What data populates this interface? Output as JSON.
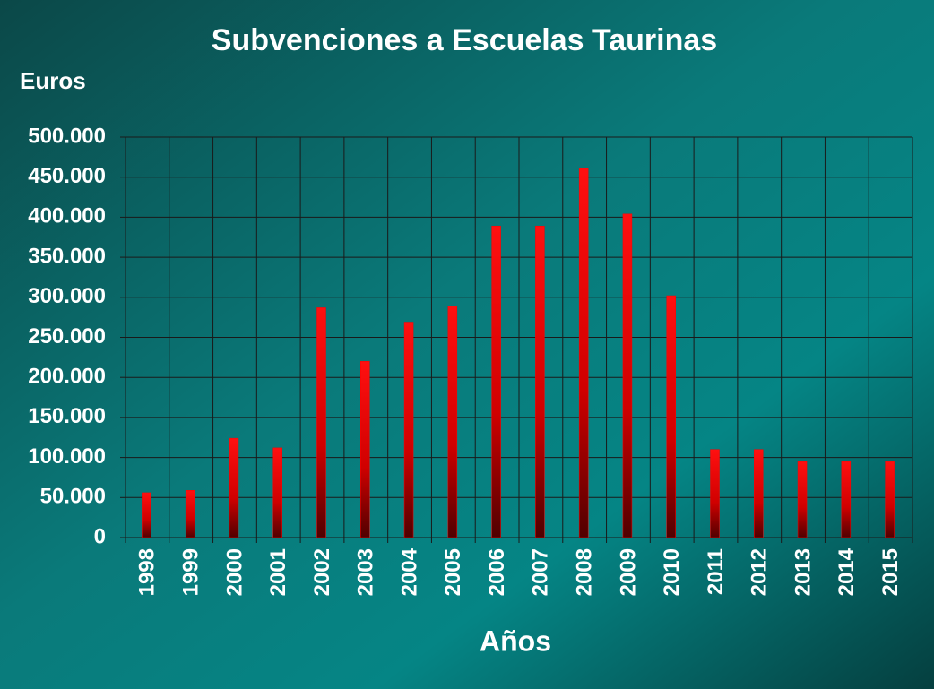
{
  "chart_data": {
    "type": "bar",
    "title": "Subvenciones a Escuelas Taurinas",
    "y_label": "Euros",
    "x_label": "Años",
    "categories": [
      "1998",
      "1999",
      "2000",
      "2001",
      "2002",
      "2003",
      "2004",
      "2005",
      "2006",
      "2007",
      "2008",
      "2009",
      "2010",
      "2011",
      "2012",
      "2013",
      "2014",
      "2015"
    ],
    "values": [
      56000,
      59000,
      124000,
      112000,
      287000,
      220000,
      269000,
      289000,
      389000,
      389000,
      461000,
      404000,
      302000,
      110000,
      110000,
      95000,
      95000,
      95000
    ],
    "color": "#ff0000",
    "ylim": [
      0,
      500000
    ],
    "yticks": [
      0,
      {
        "value": 50000,
        "label": "50.000"
      },
      {
        "value": 100000,
        "label": "100.000"
      },
      {
        "value": 150000,
        "label": "150.000"
      },
      {
        "value": 200000,
        "label": "200.000"
      },
      {
        "value": 250000,
        "label": "250.000"
      },
      {
        "value": 300000,
        "label": "300.000"
      },
      {
        "value": 350000,
        "label": "350.000"
      },
      {
        "value": 400000,
        "label": "400.000"
      },
      {
        "value": 450000,
        "label": "450.000"
      },
      {
        "value": 500000,
        "label": "500.000"
      }
    ],
    "grid": true
  }
}
